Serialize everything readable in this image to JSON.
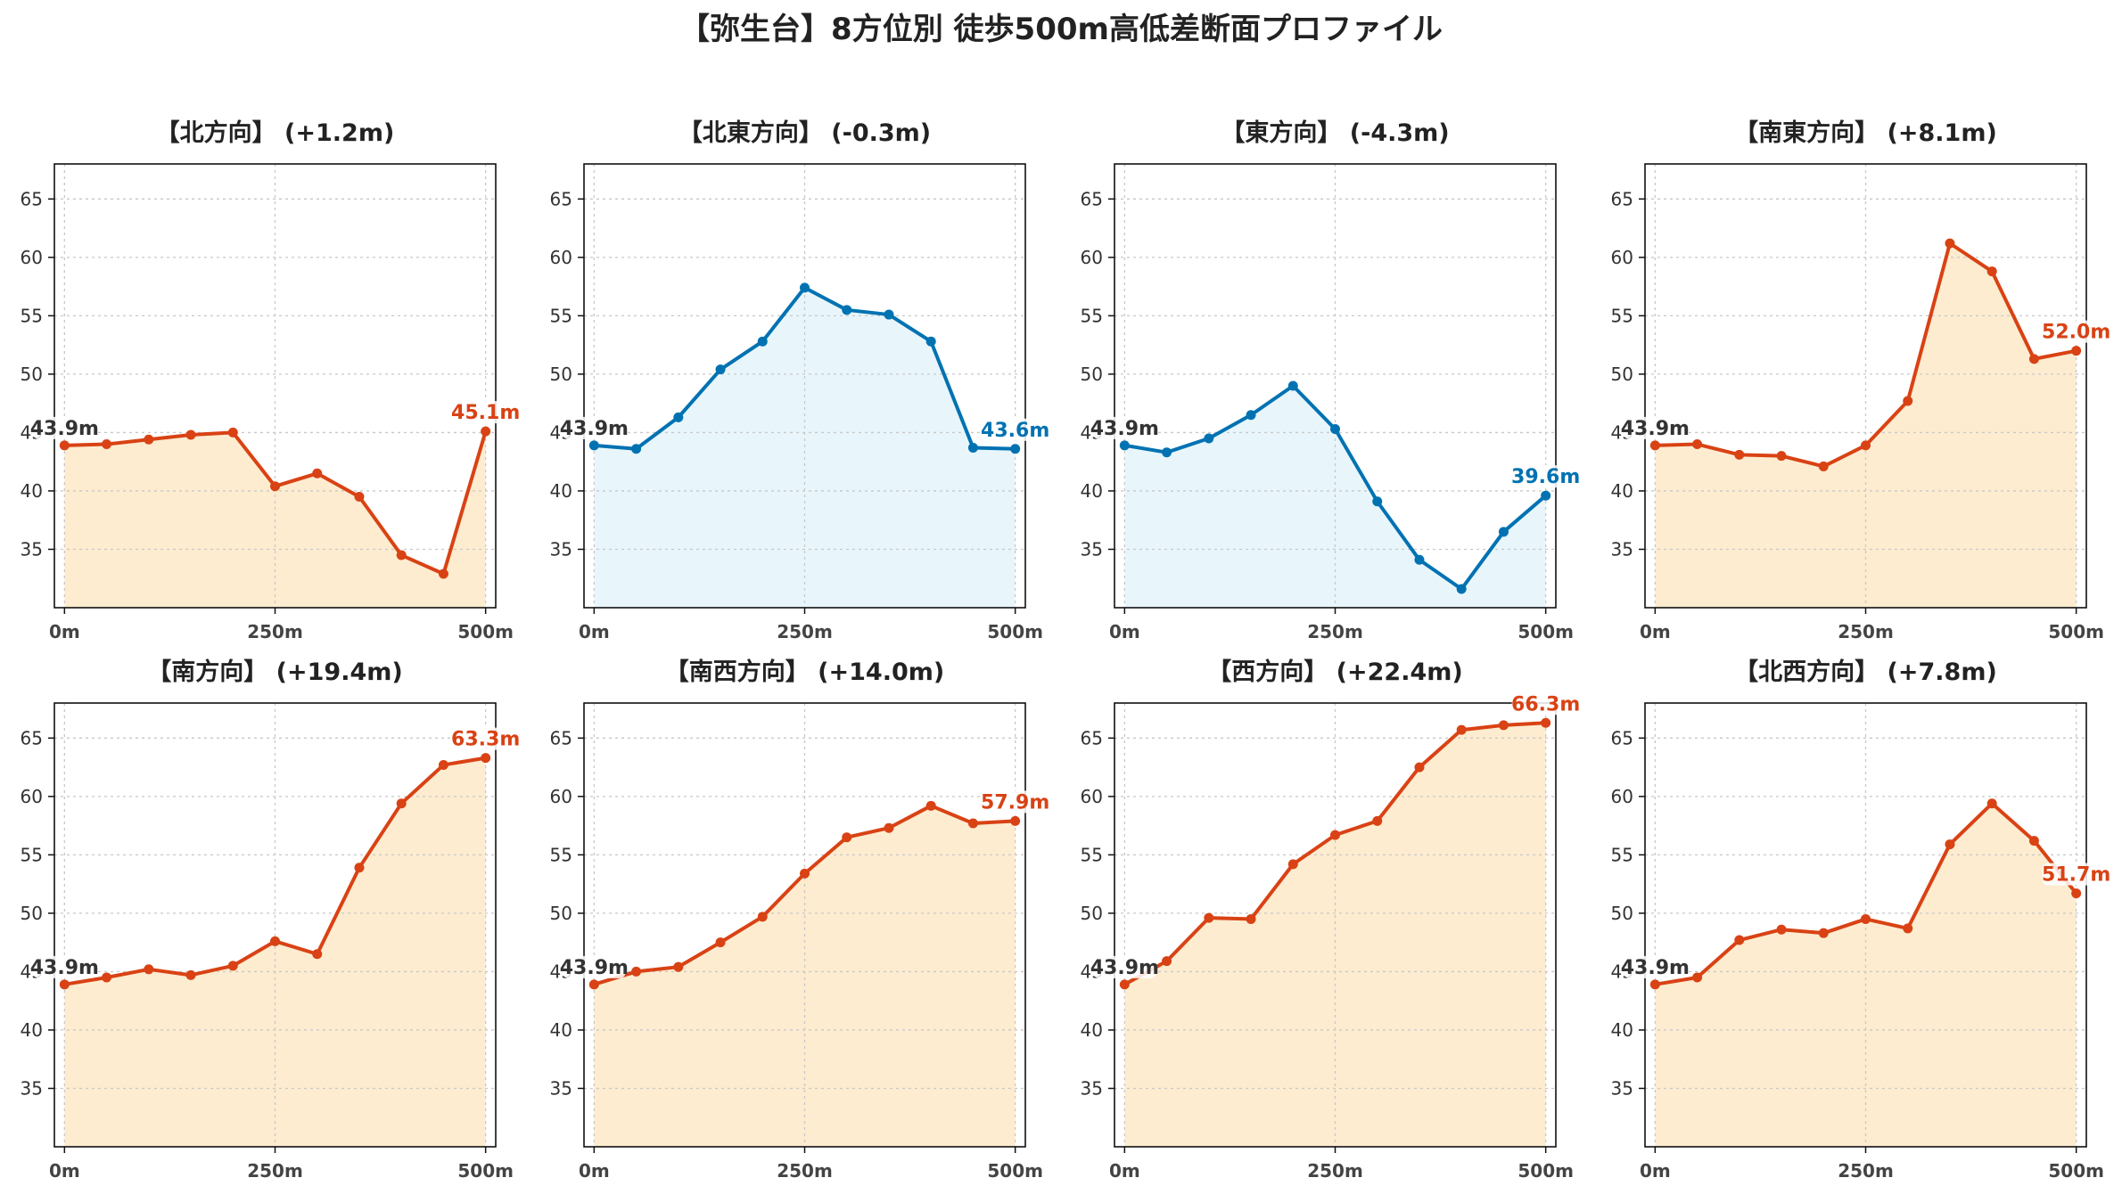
{
  "suptitle": "【弥生台】8方位別 徒歩500m高低差断面プロファイル",
  "colors": {
    "negative_line": "#0072b2",
    "negative_fill": "#e8f6fb",
    "positive_line": "#d94214",
    "positive_fill": "#fdecd0",
    "start_label": "#333333"
  },
  "chart_data": [
    {
      "type": "line",
      "title": "【北方向】 (+1.2m)",
      "diff": 1.2,
      "x": [
        0,
        50,
        100,
        150,
        200,
        250,
        300,
        350,
        400,
        450,
        500
      ],
      "values": [
        43.9,
        44.0,
        44.4,
        44.8,
        45.0,
        40.4,
        41.5,
        39.5,
        34.5,
        32.9,
        45.1
      ],
      "xticks": [
        "0m",
        "250m",
        "500m"
      ],
      "yticks": [
        35,
        40,
        45,
        50,
        55,
        60,
        65
      ],
      "ylim": [
        30,
        68
      ],
      "xlim": [
        -12,
        512
      ],
      "grid": true,
      "start_label": "43.9m",
      "end_label": "45.1m"
    },
    {
      "type": "line",
      "title": "【北東方向】 (-0.3m)",
      "diff": -0.3,
      "x": [
        0,
        50,
        100,
        150,
        200,
        250,
        300,
        350,
        400,
        450,
        500
      ],
      "values": [
        43.9,
        43.6,
        46.3,
        50.4,
        52.8,
        57.4,
        55.5,
        55.1,
        52.8,
        43.7,
        43.6
      ],
      "xticks": [
        "0m",
        "250m",
        "500m"
      ],
      "yticks": [
        35,
        40,
        45,
        50,
        55,
        60,
        65
      ],
      "ylim": [
        30,
        68
      ],
      "xlim": [
        -12,
        512
      ],
      "grid": true,
      "start_label": "43.9m",
      "end_label": "43.6m"
    },
    {
      "type": "line",
      "title": "【東方向】 (-4.3m)",
      "diff": -4.3,
      "x": [
        0,
        50,
        100,
        150,
        200,
        250,
        300,
        350,
        400,
        450,
        500
      ],
      "values": [
        43.9,
        43.3,
        44.5,
        46.5,
        49.0,
        45.3,
        39.1,
        34.1,
        31.6,
        36.5,
        39.6
      ],
      "xticks": [
        "0m",
        "250m",
        "500m"
      ],
      "yticks": [
        35,
        40,
        45,
        50,
        55,
        60,
        65
      ],
      "ylim": [
        30,
        68
      ],
      "xlim": [
        -12,
        512
      ],
      "grid": true,
      "start_label": "43.9m",
      "end_label": "39.6m"
    },
    {
      "type": "line",
      "title": "【南東方向】 (+8.1m)",
      "diff": 8.1,
      "x": [
        0,
        50,
        100,
        150,
        200,
        250,
        300,
        350,
        400,
        450,
        500
      ],
      "values": [
        43.9,
        44.0,
        43.1,
        43.0,
        42.1,
        43.9,
        47.7,
        61.2,
        58.8,
        51.3,
        52.0
      ],
      "xticks": [
        "0m",
        "250m",
        "500m"
      ],
      "yticks": [
        35,
        40,
        45,
        50,
        55,
        60,
        65
      ],
      "ylim": [
        30,
        68
      ],
      "xlim": [
        -12,
        512
      ],
      "grid": true,
      "start_label": "43.9m",
      "end_label": "52.0m"
    },
    {
      "type": "line",
      "title": "【南方向】 (+19.4m)",
      "diff": 19.4,
      "x": [
        0,
        50,
        100,
        150,
        200,
        250,
        300,
        350,
        400,
        450,
        500
      ],
      "values": [
        43.9,
        44.5,
        45.2,
        44.7,
        45.5,
        47.6,
        46.5,
        53.9,
        59.4,
        62.7,
        63.3
      ],
      "xticks": [
        "0m",
        "250m",
        "500m"
      ],
      "yticks": [
        35,
        40,
        45,
        50,
        55,
        60,
        65
      ],
      "ylim": [
        30,
        68
      ],
      "xlim": [
        -12,
        512
      ],
      "grid": true,
      "start_label": "43.9m",
      "end_label": "63.3m"
    },
    {
      "type": "line",
      "title": "【南西方向】 (+14.0m)",
      "diff": 14.0,
      "x": [
        0,
        50,
        100,
        150,
        200,
        250,
        300,
        350,
        400,
        450,
        500
      ],
      "values": [
        43.9,
        45.0,
        45.4,
        47.5,
        49.7,
        53.4,
        56.5,
        57.3,
        59.2,
        57.7,
        57.9
      ],
      "xticks": [
        "0m",
        "250m",
        "500m"
      ],
      "yticks": [
        35,
        40,
        45,
        50,
        55,
        60,
        65
      ],
      "ylim": [
        30,
        68
      ],
      "xlim": [
        -12,
        512
      ],
      "grid": true,
      "start_label": "43.9m",
      "end_label": "57.9m"
    },
    {
      "type": "line",
      "title": "【西方向】 (+22.4m)",
      "diff": 22.4,
      "x": [
        0,
        50,
        100,
        150,
        200,
        250,
        300,
        350,
        400,
        450,
        500
      ],
      "values": [
        43.9,
        45.9,
        49.6,
        49.5,
        54.2,
        56.7,
        57.9,
        62.5,
        65.7,
        66.1,
        66.3
      ],
      "xticks": [
        "0m",
        "250m",
        "500m"
      ],
      "yticks": [
        35,
        40,
        45,
        50,
        55,
        60,
        65
      ],
      "ylim": [
        30,
        68
      ],
      "xlim": [
        -12,
        512
      ],
      "grid": true,
      "start_label": "43.9m",
      "end_label": "66.3m"
    },
    {
      "type": "line",
      "title": "【北西方向】 (+7.8m)",
      "diff": 7.8,
      "x": [
        0,
        50,
        100,
        150,
        200,
        250,
        300,
        350,
        400,
        450,
        500
      ],
      "values": [
        43.9,
        44.5,
        47.7,
        48.6,
        48.3,
        49.5,
        48.7,
        55.9,
        59.4,
        56.2,
        51.7
      ],
      "xticks": [
        "0m",
        "250m",
        "500m"
      ],
      "yticks": [
        35,
        40,
        45,
        50,
        55,
        60,
        65
      ],
      "ylim": [
        30,
        68
      ],
      "xlim": [
        -12,
        512
      ],
      "grid": true,
      "start_label": "43.9m",
      "end_label": "51.7m"
    }
  ]
}
